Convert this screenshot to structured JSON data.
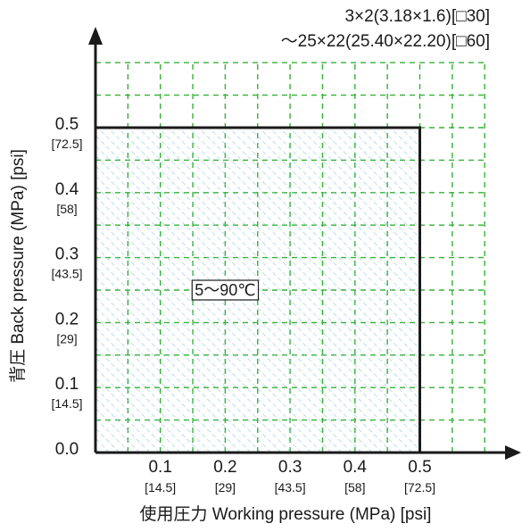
{
  "header_lines": [
    "3×2(3.18×1.6)[□30]",
    "～25×22(25.40×22.20)[□60]"
  ],
  "chart_data": {
    "type": "area",
    "title": "",
    "xlabel": "使用圧力 Working pressure (MPa) [psi]",
    "ylabel": "背圧 Back pressure (MPa) [psi]",
    "x_ticks": [
      {
        "value": 0.1,
        "label": "0.1",
        "psi": "[14.5]"
      },
      {
        "value": 0.2,
        "label": "0.2",
        "psi": "[29]"
      },
      {
        "value": 0.3,
        "label": "0.3",
        "psi": "[43.5]"
      },
      {
        "value": 0.4,
        "label": "0.4",
        "psi": "[58]"
      },
      {
        "value": 0.5,
        "label": "0.5",
        "psi": "[72.5]"
      }
    ],
    "y_ticks": [
      {
        "value": 0.0,
        "label": "0.0",
        "psi": ""
      },
      {
        "value": 0.1,
        "label": "0.1",
        "psi": "[14.5]"
      },
      {
        "value": 0.2,
        "label": "0.2",
        "psi": "[29]"
      },
      {
        "value": 0.3,
        "label": "0.3",
        "psi": "[43.5]"
      },
      {
        "value": 0.4,
        "label": "0.4",
        "psi": "[58]"
      },
      {
        "value": 0.5,
        "label": "0.5",
        "psi": "[72.5]"
      }
    ],
    "xlim": [
      0,
      0.6
    ],
    "ylim": [
      0,
      0.6
    ],
    "grid": true,
    "region": {
      "x": [
        0,
        0.5
      ],
      "y": [
        0,
        0.5
      ],
      "label": "5～90℃"
    },
    "colors": {
      "grid": "#33b233",
      "hatch": "#8cc8e6",
      "border": "#1a1a1a"
    }
  }
}
